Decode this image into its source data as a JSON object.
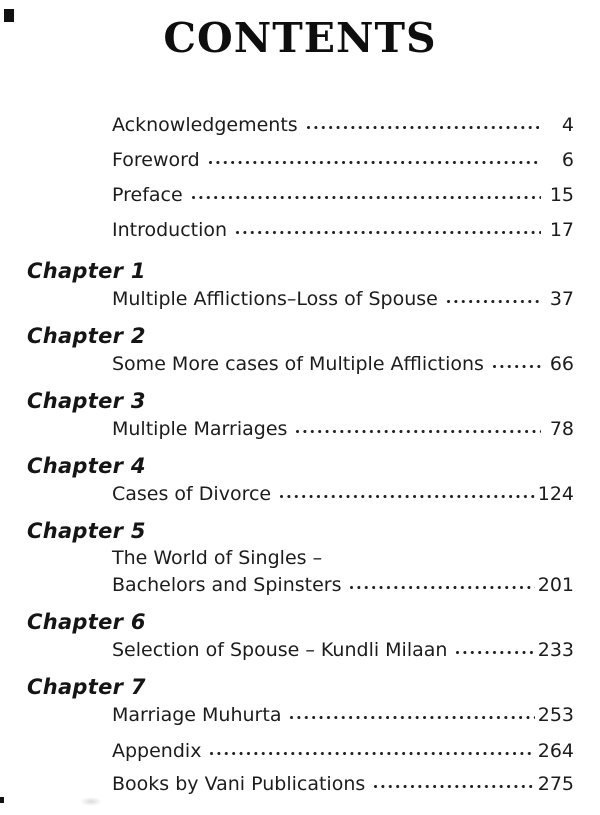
{
  "colors": {
    "ink": "#1c1c1c",
    "paper": "#ffffff"
  },
  "title": "CONTENTS",
  "front_matter": [
    {
      "label": "Acknowledgements",
      "page": "4"
    },
    {
      "label": "Foreword",
      "page": "6"
    },
    {
      "label": "Preface",
      "page": "15"
    },
    {
      "label": "Introduction",
      "page": "17"
    }
  ],
  "chapters": [
    {
      "heading": "Chapter 1",
      "title": "Multiple Afflictions–Loss of Spouse",
      "page": "37"
    },
    {
      "heading": "Chapter 2",
      "title": "Some More cases of Multiple Afflictions",
      "page": "66"
    },
    {
      "heading": "Chapter 3",
      "title": "Multiple Marriages",
      "page": "78"
    },
    {
      "heading": "Chapter 4",
      "title": "Cases of Divorce",
      "page": "124"
    },
    {
      "heading": "Chapter 5",
      "title_prefix": "The World of Singles –",
      "title": "Bachelors and Spinsters",
      "page": "201"
    },
    {
      "heading": "Chapter 6",
      "title": "Selection of Spouse – Kundli Milaan",
      "page": "233"
    },
    {
      "heading": "Chapter 7",
      "title": "Marriage Muhurta",
      "page": "253"
    }
  ],
  "back_matter": [
    {
      "label": "Appendix",
      "page": "264"
    },
    {
      "label": "Books by Vani Publications",
      "page": "275"
    }
  ]
}
